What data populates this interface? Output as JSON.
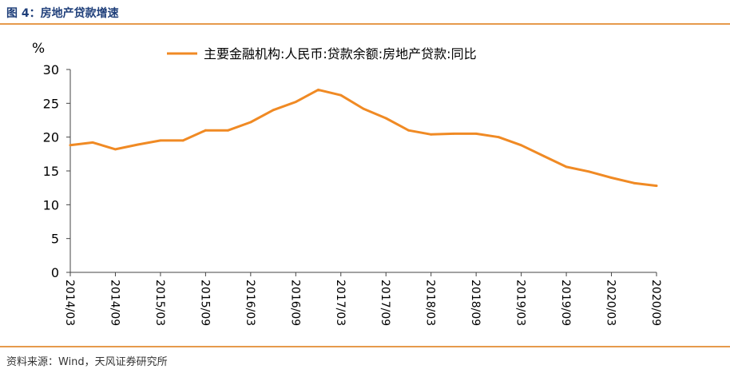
{
  "figure": {
    "title": "图 4：房地产贷款增速",
    "source": "资料来源：Wind，天风证券研究所",
    "accent_color": "#e69a4c",
    "title_color": "#1f3f7a"
  },
  "chart_data": {
    "type": "line",
    "title": "",
    "ylabel": "%",
    "xlabel": "",
    "ylim": [
      0,
      30
    ],
    "yticks": [
      0,
      5,
      10,
      15,
      20,
      25,
      30
    ],
    "grid": false,
    "legend_position": "top-center",
    "x_ticks": [
      "2014/03",
      "2014/09",
      "2015/03",
      "2015/09",
      "2016/03",
      "2016/09",
      "2017/03",
      "2017/09",
      "2018/03",
      "2018/09",
      "2019/03",
      "2019/09",
      "2020/03",
      "2020/09"
    ],
    "series": [
      {
        "name": "主要金融机构:人民币:贷款余额:房地产贷款:同比",
        "color": "#f08a24",
        "x": [
          "2014/03",
          "2014/06",
          "2014/09",
          "2014/12",
          "2015/03",
          "2015/06",
          "2015/09",
          "2015/12",
          "2016/03",
          "2016/06",
          "2016/09",
          "2016/12",
          "2017/03",
          "2017/06",
          "2017/09",
          "2017/12",
          "2018/03",
          "2018/06",
          "2018/09",
          "2018/12",
          "2019/03",
          "2019/06",
          "2019/09",
          "2019/12",
          "2020/03",
          "2020/06",
          "2020/09"
        ],
        "values": [
          18.8,
          19.2,
          18.2,
          18.9,
          19.5,
          19.5,
          21.0,
          21.0,
          22.2,
          24.0,
          25.2,
          27.0,
          26.2,
          24.2,
          22.8,
          21.0,
          20.4,
          20.5,
          20.5,
          20.0,
          18.8,
          17.2,
          15.6,
          14.9,
          14.0,
          13.2,
          12.8
        ]
      }
    ]
  }
}
